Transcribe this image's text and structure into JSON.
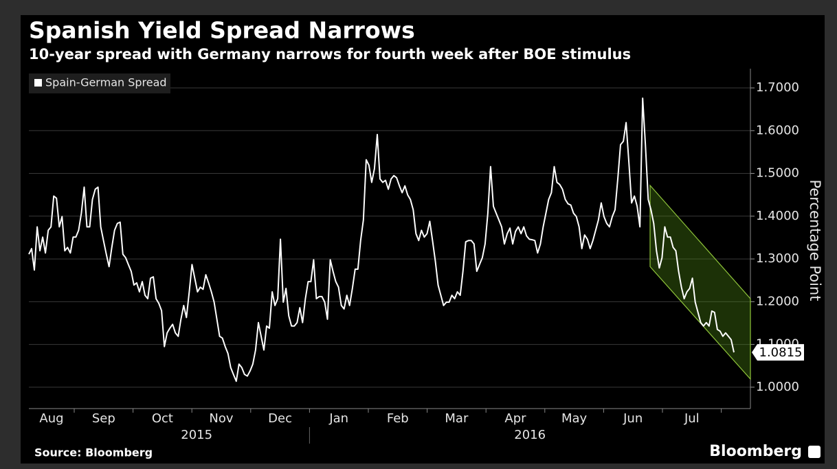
{
  "chart_data": {
    "type": "line",
    "title": "Spanish Yield Spread Narrows",
    "subtitle": "10-year spread with Germany narrows for fourth week after BOE stimulus",
    "x_axis_months": [
      "Aug",
      "Sep",
      "Oct",
      "Nov",
      "Dec",
      "Jan",
      "Feb",
      "Mar",
      "Apr",
      "May",
      "Jun",
      "Jul"
    ],
    "x_axis_years": [
      "2015",
      "2016"
    ],
    "y_label": "Percentage Point",
    "ylim": [
      0.95,
      1.745
    ],
    "yticks": [
      {
        "value": 1.0,
        "label": "1.0000"
      },
      {
        "value": 1.1,
        "label": "1.1000"
      },
      {
        "value": 1.2,
        "label": "1.2000"
      },
      {
        "value": 1.3,
        "label": "1.3000"
      },
      {
        "value": 1.4,
        "label": "1.4000"
      },
      {
        "value": 1.5,
        "label": "1.5000"
      },
      {
        "value": 1.6,
        "label": "1.6000"
      },
      {
        "value": 1.7,
        "label": "1.7000"
      }
    ],
    "grid": true,
    "legend": "top-left",
    "series": [
      {
        "name": "Spain-German Spread",
        "color": "#ffffff",
        "values": [
          1.311,
          1.324,
          1.274,
          1.375,
          1.319,
          1.351,
          1.314,
          1.367,
          1.375,
          1.447,
          1.442,
          1.375,
          1.399,
          1.319,
          1.327,
          1.314,
          1.351,
          1.351,
          1.367,
          1.407,
          1.468,
          1.375,
          1.375,
          1.439,
          1.463,
          1.468,
          1.375,
          1.343,
          1.311,
          1.282,
          1.327,
          1.367,
          1.383,
          1.386,
          1.311,
          1.303,
          1.287,
          1.271,
          1.239,
          1.244,
          1.223,
          1.247,
          1.215,
          1.207,
          1.255,
          1.258,
          1.207,
          1.196,
          1.179,
          1.095,
          1.127,
          1.138,
          1.147,
          1.127,
          1.119,
          1.159,
          1.191,
          1.163,
          1.223,
          1.287,
          1.255,
          1.223,
          1.234,
          1.229,
          1.263,
          1.244,
          1.223,
          1.199,
          1.159,
          1.119,
          1.115,
          1.095,
          1.079,
          1.046,
          1.03,
          1.014,
          1.054,
          1.046,
          1.03,
          1.026,
          1.038,
          1.054,
          1.087,
          1.151,
          1.119,
          1.087,
          1.143,
          1.138,
          1.223,
          1.191,
          1.207,
          1.346,
          1.199,
          1.231,
          1.167,
          1.143,
          1.143,
          1.151,
          1.186,
          1.151,
          1.207,
          1.247,
          1.247,
          1.298,
          1.207,
          1.212,
          1.212,
          1.199,
          1.159,
          1.298,
          1.271,
          1.247,
          1.234,
          1.191,
          1.183,
          1.215,
          1.191,
          1.231,
          1.276,
          1.276,
          1.343,
          1.391,
          1.532,
          1.519,
          1.479,
          1.511,
          1.591,
          1.487,
          1.479,
          1.484,
          1.463,
          1.487,
          1.495,
          1.49,
          1.471,
          1.455,
          1.471,
          1.45,
          1.439,
          1.415,
          1.359,
          1.343,
          1.367,
          1.351,
          1.359,
          1.388,
          1.343,
          1.295,
          1.239,
          1.215,
          1.191,
          1.199,
          1.199,
          1.215,
          1.207,
          1.223,
          1.215,
          1.271,
          1.34,
          1.343,
          1.343,
          1.335,
          1.271,
          1.287,
          1.303,
          1.335,
          1.407,
          1.516,
          1.423,
          1.407,
          1.391,
          1.375,
          1.335,
          1.359,
          1.372,
          1.335,
          1.364,
          1.375,
          1.359,
          1.375,
          1.354,
          1.346,
          1.345,
          1.343,
          1.314,
          1.335,
          1.375,
          1.407,
          1.439,
          1.455,
          1.516,
          1.479,
          1.474,
          1.463,
          1.439,
          1.429,
          1.426,
          1.407,
          1.399,
          1.375,
          1.324,
          1.356,
          1.346,
          1.324,
          1.343,
          1.367,
          1.391,
          1.431,
          1.399,
          1.383,
          1.375,
          1.399,
          1.415,
          1.487,
          1.567,
          1.575,
          1.619,
          1.527,
          1.431,
          1.447,
          1.423,
          1.375,
          1.676,
          1.567,
          1.439,
          1.415,
          1.383,
          1.319,
          1.279,
          1.303,
          1.375,
          1.351,
          1.351,
          1.327,
          1.319,
          1.271,
          1.234,
          1.207,
          1.223,
          1.231,
          1.255,
          1.199,
          1.175,
          1.151,
          1.143,
          1.151,
          1.143,
          1.178,
          1.175,
          1.135,
          1.131,
          1.119,
          1.127,
          1.119,
          1.111,
          1.0815
        ]
      }
    ],
    "channel": {
      "upper": [
        1.472,
        1.207
      ],
      "lower": [
        1.282,
        1.019
      ],
      "color": "#8fc43a"
    },
    "source": "Source: Bloomberg",
    "brand": "Bloomberg"
  }
}
